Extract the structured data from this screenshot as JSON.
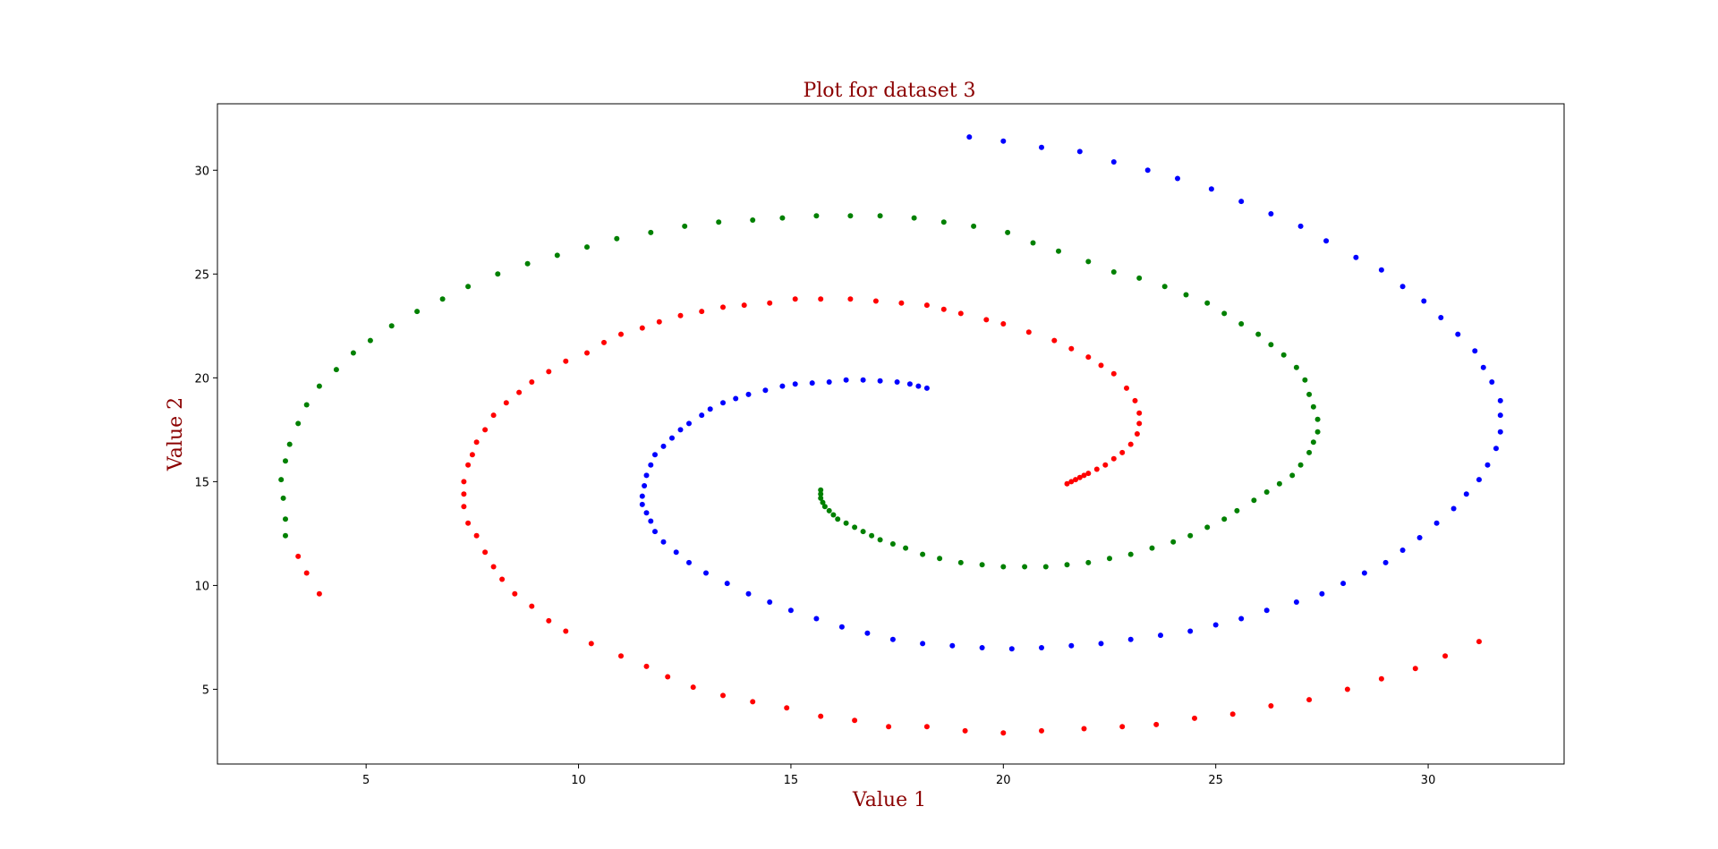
{
  "chart_data": {
    "type": "scatter",
    "title": "Plot for dataset 3",
    "xlabel": "Value 1",
    "ylabel": "Value 2",
    "xlim": [
      1.5,
      33.2
    ],
    "ylim": [
      1.4,
      33.2
    ],
    "xticks": [
      5,
      10,
      15,
      20,
      25,
      30
    ],
    "yticks": [
      5,
      10,
      15,
      20,
      25,
      30
    ],
    "grid": false,
    "label_color": "#8b0000",
    "series": [
      {
        "color": "#ff0000",
        "points": [
          [
            21.5,
            14.9
          ],
          [
            21.6,
            15.0
          ],
          [
            21.7,
            15.1
          ],
          [
            21.8,
            15.2
          ],
          [
            21.9,
            15.3
          ],
          [
            22.0,
            15.4
          ],
          [
            22.2,
            15.6
          ],
          [
            22.4,
            15.8
          ],
          [
            22.6,
            16.1
          ],
          [
            22.8,
            16.4
          ],
          [
            23.0,
            16.8
          ],
          [
            23.15,
            17.3
          ],
          [
            23.2,
            17.8
          ],
          [
            23.2,
            18.3
          ],
          [
            23.1,
            18.9
          ],
          [
            22.9,
            19.5
          ],
          [
            22.6,
            20.2
          ],
          [
            22.3,
            20.6
          ],
          [
            22.0,
            21.0
          ],
          [
            21.6,
            21.4
          ],
          [
            21.2,
            21.8
          ],
          [
            20.6,
            22.2
          ],
          [
            20.0,
            22.6
          ],
          [
            19.6,
            22.8
          ],
          [
            19.0,
            23.1
          ],
          [
            18.6,
            23.3
          ],
          [
            18.2,
            23.5
          ],
          [
            17.6,
            23.6
          ],
          [
            17.0,
            23.7
          ],
          [
            16.4,
            23.8
          ],
          [
            15.7,
            23.8
          ],
          [
            15.1,
            23.8
          ],
          [
            14.5,
            23.6
          ],
          [
            13.9,
            23.5
          ],
          [
            13.4,
            23.4
          ],
          [
            12.9,
            23.2
          ],
          [
            12.4,
            23.0
          ],
          [
            11.9,
            22.7
          ],
          [
            11.5,
            22.4
          ],
          [
            11.0,
            22.1
          ],
          [
            10.6,
            21.7
          ],
          [
            10.2,
            21.2
          ],
          [
            9.7,
            20.8
          ],
          [
            9.3,
            20.3
          ],
          [
            8.9,
            19.8
          ],
          [
            8.6,
            19.3
          ],
          [
            8.3,
            18.8
          ],
          [
            8.0,
            18.2
          ],
          [
            7.8,
            17.5
          ],
          [
            7.6,
            16.9
          ],
          [
            7.5,
            16.3
          ],
          [
            7.4,
            15.8
          ],
          [
            7.3,
            15.0
          ],
          [
            7.3,
            14.4
          ],
          [
            7.3,
            13.8
          ],
          [
            7.4,
            13.0
          ],
          [
            7.6,
            12.4
          ],
          [
            7.8,
            11.6
          ],
          [
            8.0,
            10.9
          ],
          [
            8.2,
            10.3
          ],
          [
            8.5,
            9.6
          ],
          [
            8.9,
            9.0
          ],
          [
            9.3,
            8.3
          ],
          [
            9.7,
            7.8
          ],
          [
            10.3,
            7.2
          ],
          [
            11.0,
            6.6
          ],
          [
            11.6,
            6.1
          ],
          [
            12.1,
            5.6
          ],
          [
            12.7,
            5.1
          ],
          [
            13.4,
            4.7
          ],
          [
            14.1,
            4.4
          ],
          [
            14.9,
            4.1
          ],
          [
            15.7,
            3.7
          ],
          [
            16.5,
            3.5
          ],
          [
            17.3,
            3.2
          ],
          [
            18.2,
            3.2
          ],
          [
            19.1,
            3.0
          ],
          [
            20.0,
            2.9
          ],
          [
            20.9,
            3.0
          ],
          [
            21.9,
            3.1
          ],
          [
            22.8,
            3.2
          ],
          [
            23.6,
            3.3
          ],
          [
            24.5,
            3.6
          ],
          [
            25.4,
            3.8
          ],
          [
            26.3,
            4.2
          ],
          [
            27.2,
            4.5
          ],
          [
            28.1,
            5.0
          ],
          [
            28.9,
            5.5
          ],
          [
            29.7,
            6.0
          ],
          [
            30.4,
            6.6
          ],
          [
            31.2,
            7.3
          ],
          [
            3.9,
            9.6
          ],
          [
            3.6,
            10.6
          ],
          [
            3.4,
            11.4
          ]
        ]
      },
      {
        "color": "#008000",
        "points": [
          [
            15.7,
            14.6
          ],
          [
            15.7,
            14.4
          ],
          [
            15.7,
            14.2
          ],
          [
            15.75,
            14.0
          ],
          [
            15.8,
            13.8
          ],
          [
            15.9,
            13.6
          ],
          [
            16.0,
            13.4
          ],
          [
            16.1,
            13.2
          ],
          [
            16.3,
            13.0
          ],
          [
            16.5,
            12.8
          ],
          [
            16.7,
            12.6
          ],
          [
            16.9,
            12.4
          ],
          [
            17.1,
            12.2
          ],
          [
            17.4,
            12.0
          ],
          [
            17.7,
            11.8
          ],
          [
            18.1,
            11.5
          ],
          [
            18.5,
            11.3
          ],
          [
            19.0,
            11.1
          ],
          [
            19.5,
            11.0
          ],
          [
            20.0,
            10.9
          ],
          [
            20.5,
            10.9
          ],
          [
            21.0,
            10.9
          ],
          [
            21.5,
            11.0
          ],
          [
            22.0,
            11.1
          ],
          [
            22.5,
            11.3
          ],
          [
            23.0,
            11.5
          ],
          [
            23.5,
            11.8
          ],
          [
            24.0,
            12.1
          ],
          [
            24.4,
            12.4
          ],
          [
            24.8,
            12.8
          ],
          [
            25.2,
            13.2
          ],
          [
            25.5,
            13.6
          ],
          [
            25.9,
            14.1
          ],
          [
            26.2,
            14.5
          ],
          [
            26.5,
            14.9
          ],
          [
            26.8,
            15.3
          ],
          [
            27.0,
            15.8
          ],
          [
            27.2,
            16.4
          ],
          [
            27.3,
            16.9
          ],
          [
            27.4,
            17.4
          ],
          [
            27.4,
            18.0
          ],
          [
            27.3,
            18.6
          ],
          [
            27.2,
            19.2
          ],
          [
            27.1,
            19.9
          ],
          [
            26.9,
            20.5
          ],
          [
            26.6,
            21.1
          ],
          [
            26.3,
            21.6
          ],
          [
            26.0,
            22.1
          ],
          [
            25.6,
            22.6
          ],
          [
            25.2,
            23.1
          ],
          [
            24.8,
            23.6
          ],
          [
            24.3,
            24.0
          ],
          [
            23.8,
            24.4
          ],
          [
            23.2,
            24.8
          ],
          [
            22.6,
            25.1
          ],
          [
            22.0,
            25.6
          ],
          [
            21.3,
            26.1
          ],
          [
            20.7,
            26.5
          ],
          [
            20.1,
            27.0
          ],
          [
            19.3,
            27.3
          ],
          [
            18.6,
            27.5
          ],
          [
            17.9,
            27.7
          ],
          [
            17.1,
            27.8
          ],
          [
            16.4,
            27.8
          ],
          [
            15.6,
            27.8
          ],
          [
            14.8,
            27.7
          ],
          [
            14.1,
            27.6
          ],
          [
            13.3,
            27.5
          ],
          [
            12.5,
            27.3
          ],
          [
            11.7,
            27.0
          ],
          [
            10.9,
            26.7
          ],
          [
            10.2,
            26.3
          ],
          [
            9.5,
            25.9
          ],
          [
            8.8,
            25.5
          ],
          [
            8.1,
            25.0
          ],
          [
            7.4,
            24.4
          ],
          [
            6.8,
            23.8
          ],
          [
            6.2,
            23.2
          ],
          [
            5.6,
            22.5
          ],
          [
            5.1,
            21.8
          ],
          [
            4.7,
            21.2
          ],
          [
            4.3,
            20.4
          ],
          [
            3.9,
            19.6
          ],
          [
            3.6,
            18.7
          ],
          [
            3.4,
            17.8
          ],
          [
            3.2,
            16.8
          ],
          [
            3.1,
            16.0
          ],
          [
            3.0,
            15.1
          ],
          [
            3.05,
            14.2
          ],
          [
            3.1,
            13.2
          ],
          [
            3.1,
            12.4
          ]
        ]
      },
      {
        "color": "#0000ff",
        "points": [
          [
            18.2,
            19.5
          ],
          [
            18.0,
            19.6
          ],
          [
            17.8,
            19.7
          ],
          [
            17.5,
            19.8
          ],
          [
            17.1,
            19.85
          ],
          [
            16.7,
            19.9
          ],
          [
            16.3,
            19.9
          ],
          [
            15.9,
            19.8
          ],
          [
            15.5,
            19.75
          ],
          [
            15.1,
            19.7
          ],
          [
            14.8,
            19.6
          ],
          [
            14.4,
            19.4
          ],
          [
            14.0,
            19.2
          ],
          [
            13.7,
            19.0
          ],
          [
            13.4,
            18.8
          ],
          [
            13.1,
            18.5
          ],
          [
            12.9,
            18.2
          ],
          [
            12.6,
            17.8
          ],
          [
            12.4,
            17.5
          ],
          [
            12.2,
            17.1
          ],
          [
            12.0,
            16.7
          ],
          [
            11.8,
            16.3
          ],
          [
            11.7,
            15.8
          ],
          [
            11.6,
            15.3
          ],
          [
            11.55,
            14.8
          ],
          [
            11.5,
            14.3
          ],
          [
            11.5,
            13.9
          ],
          [
            11.6,
            13.5
          ],
          [
            11.7,
            13.1
          ],
          [
            11.8,
            12.6
          ],
          [
            12.0,
            12.1
          ],
          [
            12.3,
            11.6
          ],
          [
            12.6,
            11.1
          ],
          [
            13.0,
            10.6
          ],
          [
            13.5,
            10.1
          ],
          [
            14.0,
            9.6
          ],
          [
            14.5,
            9.2
          ],
          [
            15.0,
            8.8
          ],
          [
            15.6,
            8.4
          ],
          [
            16.2,
            8.0
          ],
          [
            16.8,
            7.7
          ],
          [
            17.4,
            7.4
          ],
          [
            18.1,
            7.2
          ],
          [
            18.8,
            7.1
          ],
          [
            19.5,
            7.0
          ],
          [
            20.2,
            6.95
          ],
          [
            20.9,
            7.0
          ],
          [
            21.6,
            7.1
          ],
          [
            22.3,
            7.2
          ],
          [
            23.0,
            7.4
          ],
          [
            23.7,
            7.6
          ],
          [
            24.4,
            7.8
          ],
          [
            25.0,
            8.1
          ],
          [
            25.6,
            8.4
          ],
          [
            26.2,
            8.8
          ],
          [
            26.9,
            9.2
          ],
          [
            27.5,
            9.6
          ],
          [
            28.0,
            10.1
          ],
          [
            28.5,
            10.6
          ],
          [
            29.0,
            11.1
          ],
          [
            29.4,
            11.7
          ],
          [
            29.8,
            12.3
          ],
          [
            30.2,
            13.0
          ],
          [
            30.6,
            13.7
          ],
          [
            30.9,
            14.4
          ],
          [
            31.2,
            15.1
          ],
          [
            31.4,
            15.8
          ],
          [
            31.6,
            16.6
          ],
          [
            31.7,
            17.4
          ],
          [
            31.7,
            18.2
          ],
          [
            31.7,
            18.9
          ],
          [
            31.5,
            19.8
          ],
          [
            31.3,
            20.5
          ],
          [
            31.1,
            21.3
          ],
          [
            30.7,
            22.1
          ],
          [
            30.3,
            22.9
          ],
          [
            29.9,
            23.7
          ],
          [
            29.4,
            24.4
          ],
          [
            28.9,
            25.2
          ],
          [
            28.3,
            25.8
          ],
          [
            27.6,
            26.6
          ],
          [
            27.0,
            27.3
          ],
          [
            26.3,
            27.9
          ],
          [
            25.6,
            28.5
          ],
          [
            24.9,
            29.1
          ],
          [
            24.1,
            29.6
          ],
          [
            23.4,
            30.0
          ],
          [
            22.6,
            30.4
          ],
          [
            21.8,
            30.9
          ],
          [
            20.9,
            31.1
          ],
          [
            20.0,
            31.4
          ],
          [
            19.2,
            31.6
          ]
        ]
      }
    ]
  }
}
